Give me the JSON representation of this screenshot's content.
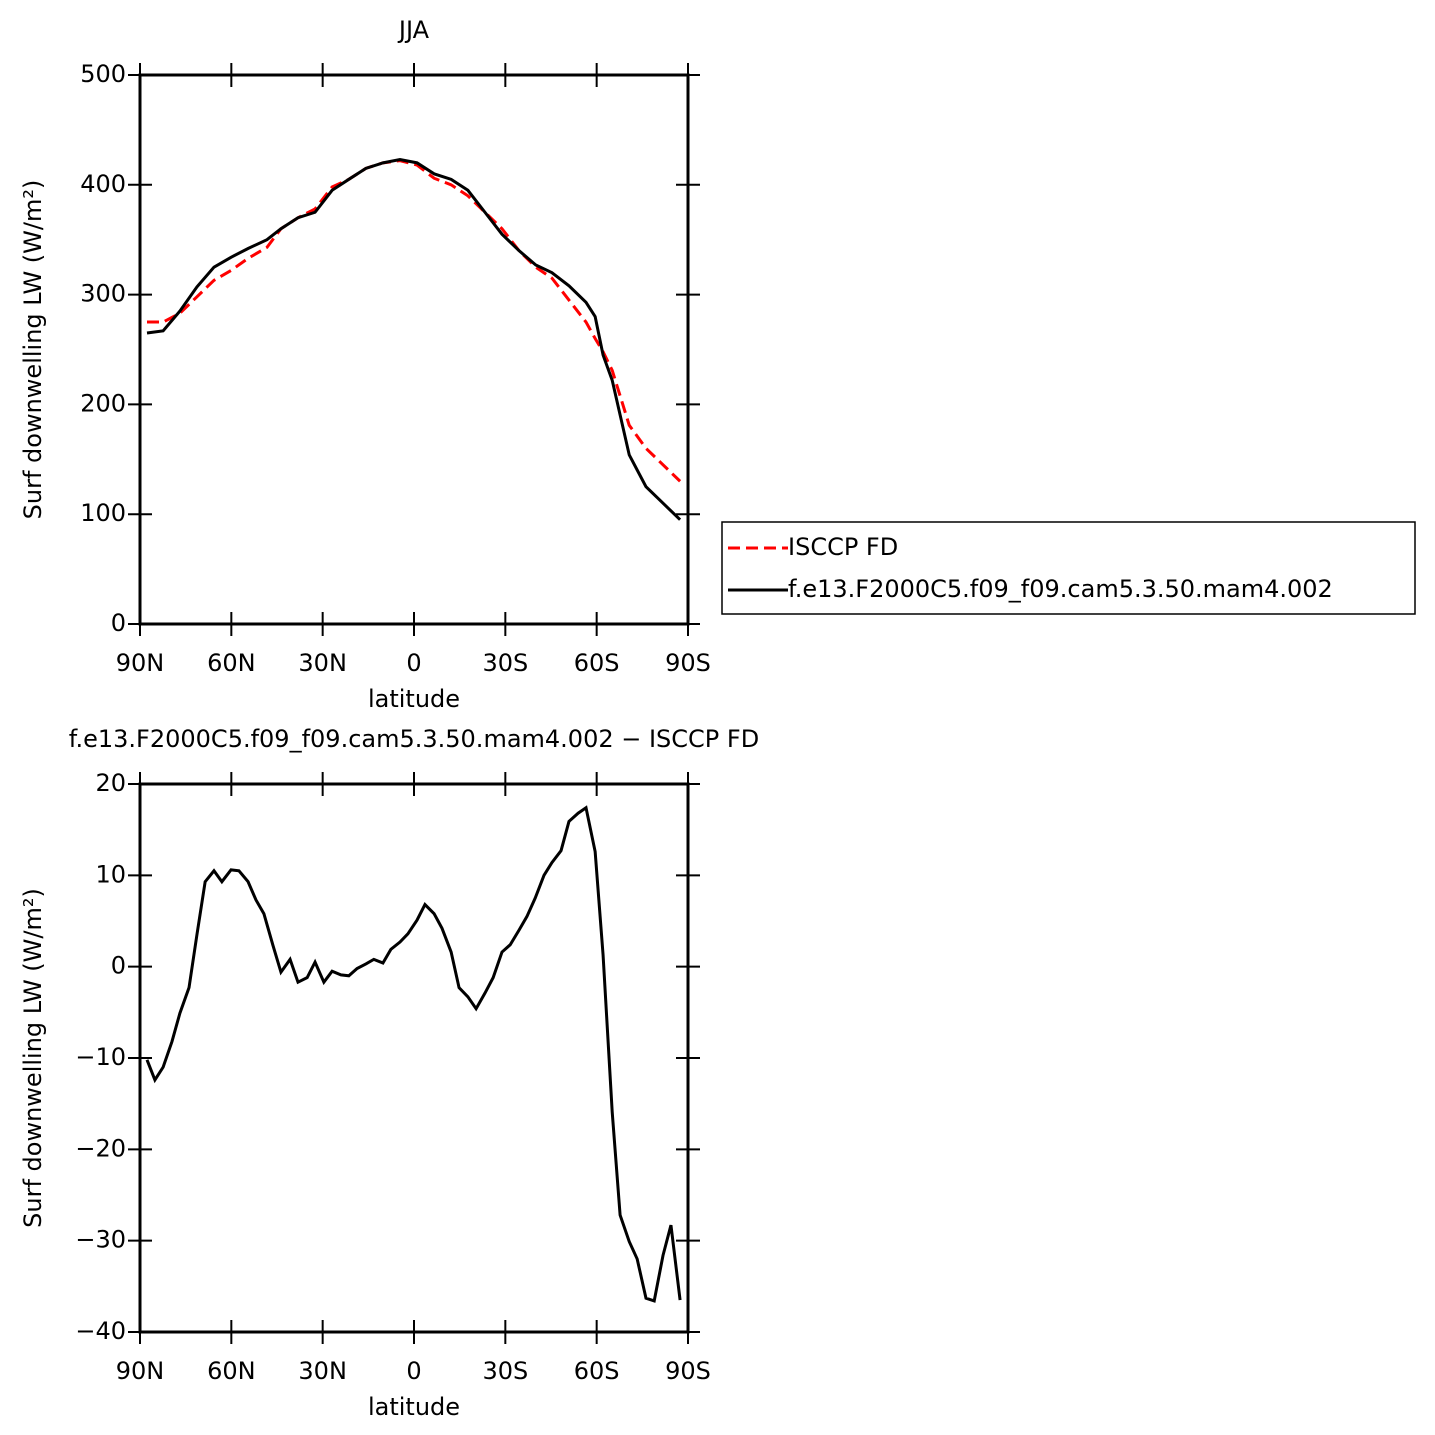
{
  "chart_data": [
    {
      "type": "line",
      "title": "JJA",
      "xlabel": "latitude",
      "ylabel": "Surf downwelling LW (W/m²)",
      "x": [
        87.7,
        82.4,
        76.9,
        71.3,
        65.7,
        60.1,
        54.5,
        48.3,
        43.7,
        38.1,
        32.5,
        26.9,
        21.4,
        15.8,
        10.2,
        4.6,
        -1.0,
        -6.6,
        -12.2,
        -17.7,
        -23.3,
        -28.9,
        -34.5,
        -40.0,
        -45.3,
        -50.9,
        -56.5,
        -59.5,
        -62.1,
        -65.1,
        -70.7,
        -76.2,
        -81.8,
        -87.4
      ],
      "series": [
        {
          "name": "ISCCP FD",
          "color": "#ff0000",
          "style": "dashed",
          "values": [
            275,
            275,
            283,
            298,
            313,
            322,
            333,
            343,
            360,
            370,
            378,
            398,
            405,
            415,
            420,
            422,
            418,
            406,
            400,
            390,
            375,
            360,
            340,
            325,
            315,
            295,
            275,
            260,
            248,
            231,
            181,
            160,
            145,
            130
          ]
        },
        {
          "name": "f.e13.F2000C5.f09_f09.cam5.3.50.mam4.002",
          "color": "#000000",
          "style": "solid",
          "values": [
            265,
            267,
            285,
            307,
            325,
            334,
            342,
            350,
            360,
            370,
            375,
            395,
            405,
            415,
            420,
            423,
            420,
            410,
            405,
            395,
            375,
            355,
            340,
            327,
            320,
            308,
            293,
            280,
            245,
            222,
            154,
            125,
            110,
            95
          ]
        }
      ],
      "xlim": [
        90,
        -90
      ],
      "xticks": [
        {
          "value": 90,
          "label": "90N"
        },
        {
          "value": 60,
          "label": "60N"
        },
        {
          "value": 30,
          "label": "30N"
        },
        0,
        {
          "value": -30,
          "label": "30S"
        },
        {
          "value": -60,
          "label": "60S"
        },
        {
          "value": -90,
          "label": "90S"
        }
      ],
      "ylim": [
        0,
        500
      ],
      "yticks": [
        0,
        100,
        200,
        300,
        400,
        500
      ],
      "legend": "right"
    },
    {
      "type": "line",
      "title": "f.e13.F2000C5.f09_f09.cam5.3.50.mam4.002 − ISCCP FD",
      "xlabel": "latitude",
      "ylabel": "Surf downwelling LW (W/m²)",
      "x": [
        87.7,
        85.1,
        82.4,
        79.5,
        76.9,
        73.9,
        71.3,
        68.6,
        65.7,
        63.1,
        60.1,
        57.5,
        54.5,
        51.9,
        49.3,
        46.3,
        43.7,
        40.7,
        38.1,
        35.1,
        32.5,
        29.6,
        26.9,
        24.0,
        21.4,
        18.7,
        15.8,
        13.2,
        10.2,
        7.6,
        4.6,
        2.0,
        -1.0,
        -3.6,
        -6.6,
        -9.2,
        -12.2,
        -14.8,
        -17.7,
        -20.4,
        -23.3,
        -26.0,
        -28.9,
        -31.6,
        -34.5,
        -37.1,
        -39.8,
        -42.7,
        -45.3,
        -48.3,
        -50.9,
        -53.9,
        -56.5,
        -59.5,
        -62.1,
        -65.1,
        -67.7,
        -70.7,
        -73.3,
        -76.2,
        -78.9,
        -81.8,
        -84.4,
        -87.4
      ],
      "series": [
        {
          "color": "#000000",
          "style": "solid",
          "values": [
            -10.2,
            -12.4,
            -11.0,
            -8.2,
            -5.1,
            -2.3,
            3.5,
            9.3,
            10.5,
            9.3,
            10.6,
            10.5,
            9.3,
            7.3,
            5.8,
            2.3,
            -0.6,
            0.8,
            -1.7,
            -1.2,
            0.5,
            -1.7,
            -0.5,
            -0.9,
            -1.0,
            -0.2,
            0.3,
            0.8,
            0.4,
            1.9,
            2.7,
            3.6,
            5.1,
            6.8,
            5.8,
            4.2,
            1.6,
            -2.3,
            -3.3,
            -4.6,
            -2.9,
            -1.2,
            1.6,
            2.4,
            4.0,
            5.5,
            7.5,
            10.0,
            11.4,
            12.7,
            15.9,
            16.8,
            17.4,
            12.6,
            1.3,
            -15.9,
            -27.2,
            -30.1,
            -32.0,
            -36.3,
            -36.6,
            -31.6,
            -28.3,
            -36.5
          ]
        }
      ],
      "xlim": [
        90,
        -90
      ],
      "xticks": [
        {
          "value": 90,
          "label": "90N"
        },
        {
          "value": 60,
          "label": "60N"
        },
        {
          "value": 30,
          "label": "30N"
        },
        0,
        {
          "value": -30,
          "label": "30S"
        },
        {
          "value": -60,
          "label": "60S"
        },
        {
          "value": -90,
          "label": "90S"
        }
      ],
      "ylim": [
        -40,
        20
      ],
      "yticks": [
        {
          "value": -40,
          "label": "−40"
        },
        {
          "value": -30,
          "label": "−30"
        },
        {
          "value": -20,
          "label": "−20"
        },
        {
          "value": -10,
          "label": "−10"
        },
        0,
        10,
        20
      ]
    }
  ]
}
